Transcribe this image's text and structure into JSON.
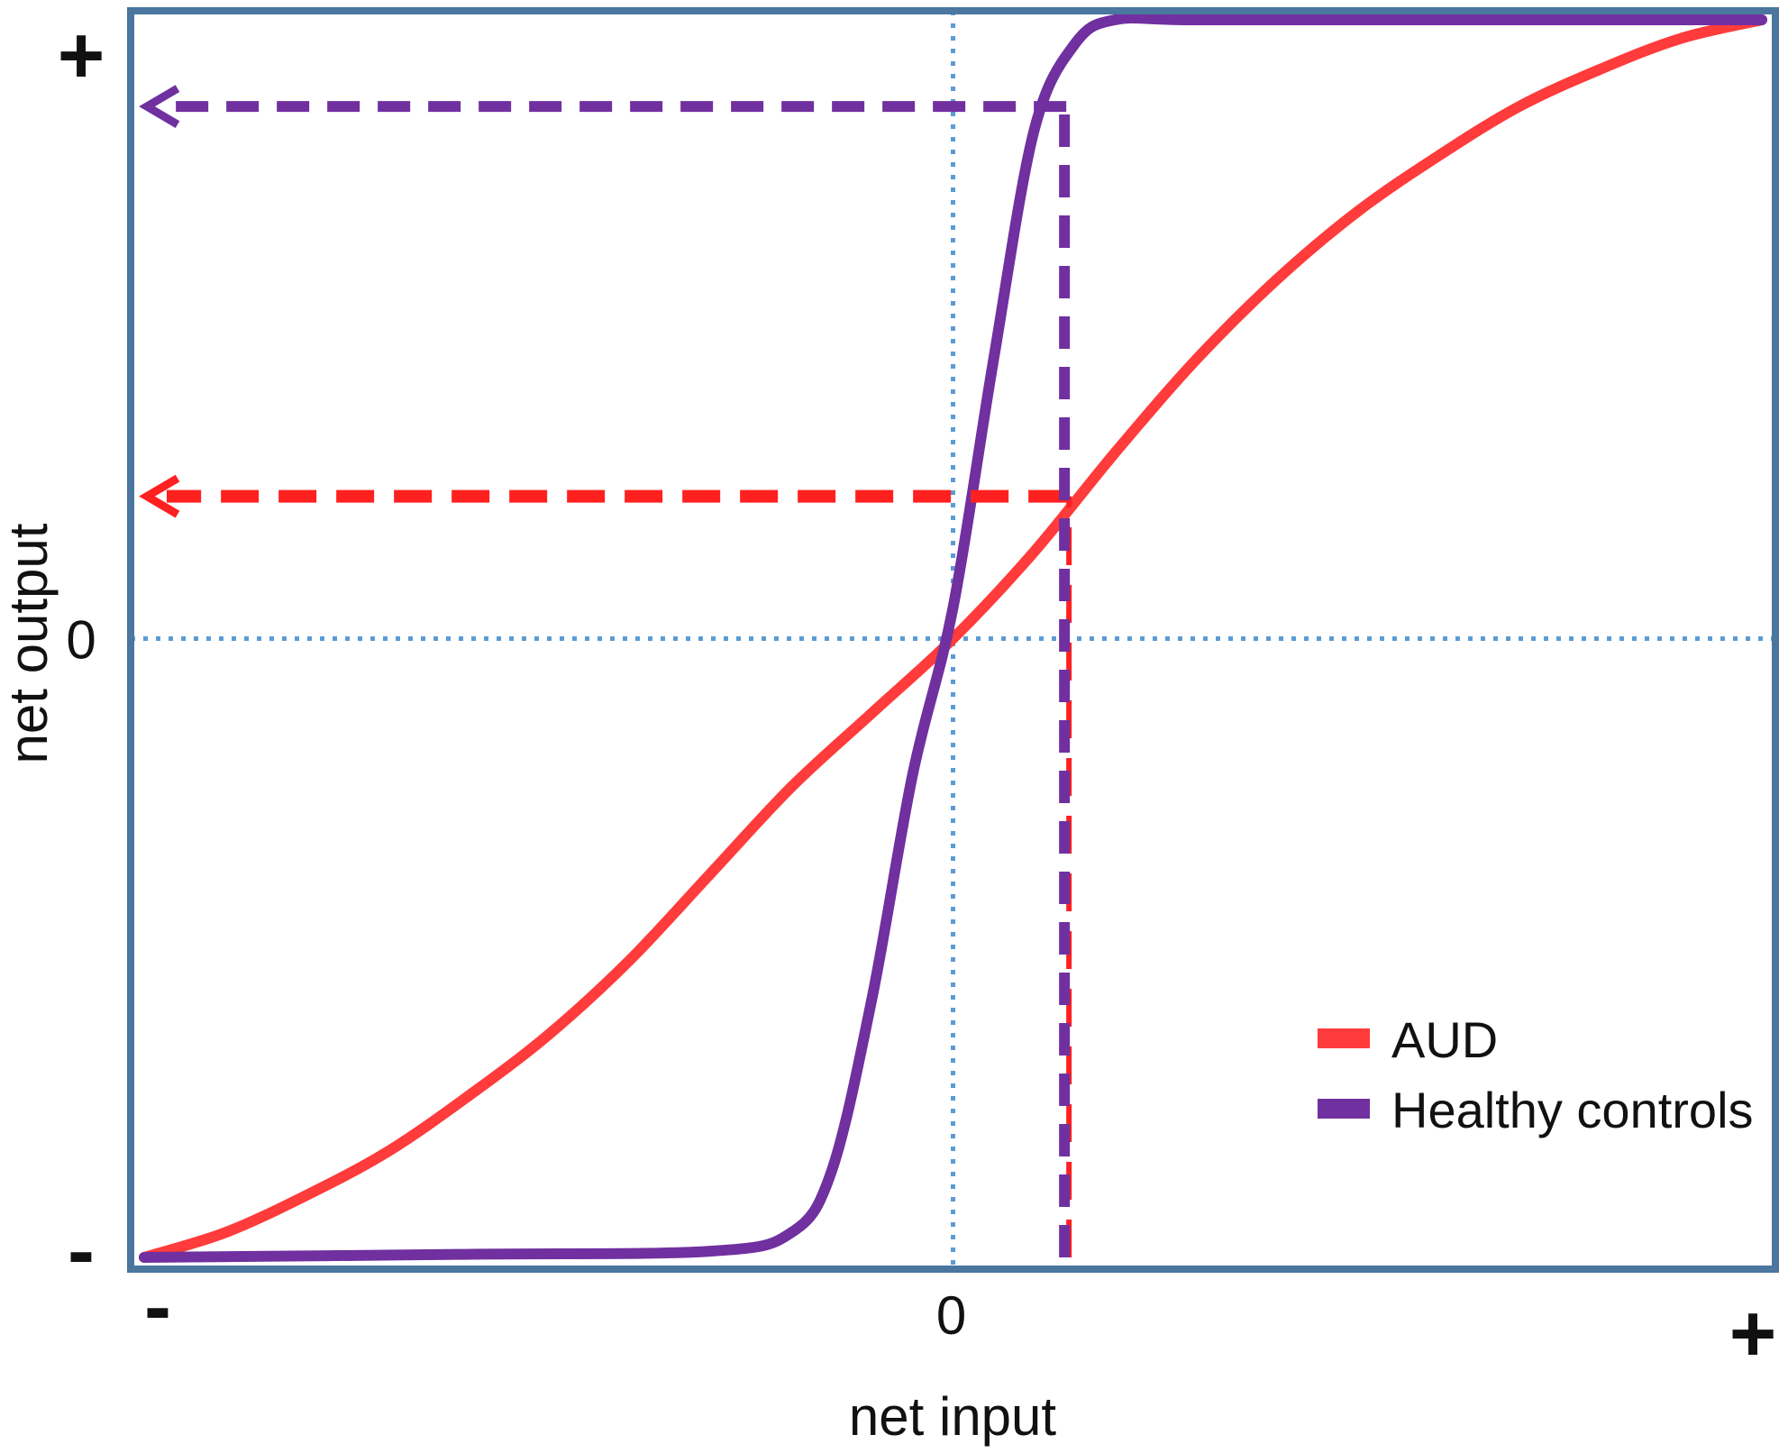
{
  "chart_data": {
    "type": "line",
    "title": "",
    "xlabel": "net input",
    "ylabel": "net output",
    "xlim": [
      -1,
      1
    ],
    "ylim": [
      -1,
      1
    ],
    "x_ticks": [
      {
        "value": -1,
        "label": "-"
      },
      {
        "value": 0,
        "label": "0"
      },
      {
        "value": 1,
        "label": "+"
      }
    ],
    "y_ticks": [
      {
        "value": -1,
        "label": "-"
      },
      {
        "value": 0,
        "label": "0"
      },
      {
        "value": 1,
        "label": "+"
      }
    ],
    "zero_lines": true,
    "legend_position": "bottom-right",
    "series": [
      {
        "name": "AUD",
        "color": "#ff3b3b",
        "x": [
          -1,
          -0.9,
          -0.8,
          -0.7,
          -0.6,
          -0.5,
          -0.4,
          -0.3,
          -0.2,
          -0.1,
          0,
          0.1,
          0.2,
          0.3,
          0.4,
          0.5,
          0.6,
          0.7,
          0.8,
          0.9,
          1
        ],
        "y": [
          -1,
          -0.96,
          -0.9,
          -0.83,
          -0.74,
          -0.64,
          -0.52,
          -0.38,
          -0.24,
          -0.12,
          0,
          0.14,
          0.3,
          0.45,
          0.58,
          0.69,
          0.78,
          0.86,
          0.92,
          0.97,
          1
        ]
      },
      {
        "name": "Healthy controls",
        "color": "#7030a0",
        "x": [
          -1,
          -0.6,
          -0.3,
          -0.2,
          -0.15,
          -0.1,
          -0.05,
          0,
          0.05,
          0.1,
          0.15,
          0.2,
          0.3,
          0.6,
          1
        ],
        "y": [
          -1,
          -0.995,
          -0.99,
          -0.96,
          -0.86,
          -0.58,
          -0.22,
          0.05,
          0.45,
          0.82,
          0.96,
          1,
          1,
          1,
          1
        ]
      }
    ],
    "annotations": [
      {
        "series": "AUD",
        "style": "dashed-arrow",
        "color": "#ff2020",
        "x": 0.14,
        "y": 0.23
      },
      {
        "series": "Healthy controls",
        "style": "dashed-arrow",
        "color": "#7030a0",
        "x": 0.14,
        "y": 0.86
      }
    ]
  }
}
